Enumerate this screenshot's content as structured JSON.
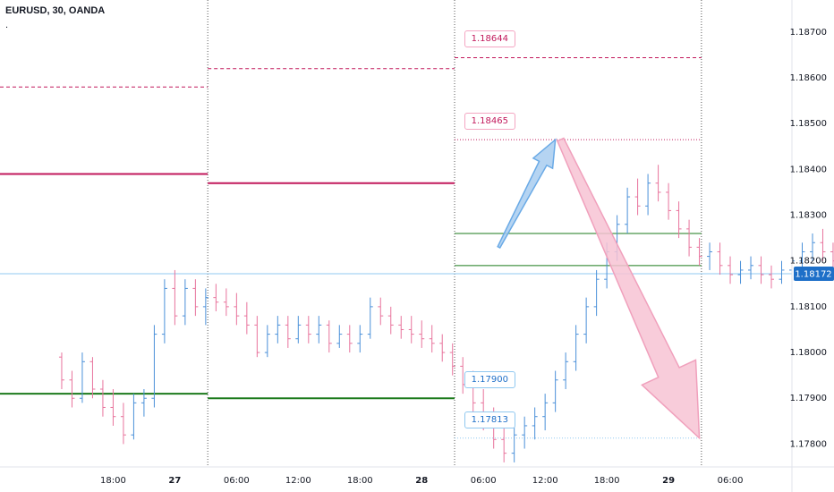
{
  "title": "EURUSD, 30, OANDA",
  "subtitle": ".",
  "colors": {
    "up": "#4a90d9",
    "down": "#e8739c",
    "support": "#1b7a1b",
    "resistance": "#c2185b",
    "grid_sep": "#555555",
    "current": "#90c8f0",
    "arrow_up_fill": "#a8cdf0",
    "arrow_down_fill": "#f7c3d3"
  },
  "chart_data": {
    "type": "candlestick",
    "y_ticks": [
      1.187,
      1.186,
      1.185,
      1.184,
      1.183,
      1.182,
      1.181,
      1.18,
      1.179,
      1.178
    ],
    "y_tick_labels": [
      "1.18700",
      "1.18600",
      "1.18500",
      "1.18400",
      "1.18300",
      "1.18200",
      "1.18100",
      "1.18000",
      "1.17900",
      "1.17800"
    ],
    "ylim": [
      1.1775,
      1.1877
    ],
    "x_ticks": [
      {
        "t": 5,
        "label": "18:00",
        "bold": false
      },
      {
        "t": 11,
        "label": "27",
        "bold": true
      },
      {
        "t": 17,
        "label": "06:00",
        "bold": false
      },
      {
        "t": 23,
        "label": "12:00",
        "bold": false
      },
      {
        "t": 29,
        "label": "18:00",
        "bold": false
      },
      {
        "t": 35,
        "label": "28",
        "bold": true
      },
      {
        "t": 41,
        "label": "06:00",
        "bold": false
      },
      {
        "t": 47,
        "label": "12:00",
        "bold": false
      },
      {
        "t": 53,
        "label": "18:00",
        "bold": false
      },
      {
        "t": 59,
        "label": "29",
        "bold": true
      },
      {
        "t": 65,
        "label": "06:00",
        "bold": false
      }
    ],
    "xlim": [
      -6,
      71
    ],
    "day_separators": [
      14.2,
      38.2,
      62.2
    ],
    "current_price": 1.18172,
    "current_price_label": "1.18172",
    "candles": [
      [
        1.1799,
        1.18,
        1.1792,
        1.1794
      ],
      [
        1.1794,
        1.1796,
        1.1788,
        1.179
      ],
      [
        1.179,
        1.18,
        1.1789,
        1.1798
      ],
      [
        1.1798,
        1.1799,
        1.179,
        1.1792
      ],
      [
        1.1792,
        1.1794,
        1.1786,
        1.1788
      ],
      [
        1.1788,
        1.1792,
        1.1784,
        1.1786
      ],
      [
        1.1786,
        1.1789,
        1.178,
        1.1782
      ],
      [
        1.1782,
        1.1791,
        1.1781,
        1.1789
      ],
      [
        1.1789,
        1.1792,
        1.1786,
        1.179
      ],
      [
        1.179,
        1.1806,
        1.1788,
        1.1804
      ],
      [
        1.1804,
        1.1816,
        1.1802,
        1.1814
      ],
      [
        1.1814,
        1.1818,
        1.1806,
        1.1808
      ],
      [
        1.1808,
        1.1816,
        1.1806,
        1.1814
      ],
      [
        1.1814,
        1.1816,
        1.1808,
        1.181
      ],
      [
        1.181,
        1.1814,
        1.1806,
        1.1812
      ],
      [
        1.1812,
        1.1815,
        1.1809,
        1.1811
      ],
      [
        1.1811,
        1.1814,
        1.1808,
        1.181
      ],
      [
        1.181,
        1.1813,
        1.1806,
        1.1808
      ],
      [
        1.1808,
        1.1811,
        1.1804,
        1.1806
      ],
      [
        1.1806,
        1.1808,
        1.1799,
        1.18
      ],
      [
        1.18,
        1.1806,
        1.1799,
        1.1804
      ],
      [
        1.1804,
        1.1808,
        1.1802,
        1.1806
      ],
      [
        1.1806,
        1.1808,
        1.1801,
        1.1803
      ],
      [
        1.1803,
        1.1808,
        1.1802,
        1.1806
      ],
      [
        1.1806,
        1.1808,
        1.1802,
        1.1804
      ],
      [
        1.1804,
        1.1808,
        1.1802,
        1.1806
      ],
      [
        1.1806,
        1.1807,
        1.18,
        1.1802
      ],
      [
        1.1802,
        1.1806,
        1.1801,
        1.1804
      ],
      [
        1.1804,
        1.1806,
        1.18,
        1.1802
      ],
      [
        1.1802,
        1.1806,
        1.18,
        1.1804
      ],
      [
        1.1804,
        1.1812,
        1.1803,
        1.181
      ],
      [
        1.181,
        1.1812,
        1.1806,
        1.1808
      ],
      [
        1.1808,
        1.181,
        1.1804,
        1.1806
      ],
      [
        1.1806,
        1.1808,
        1.1803,
        1.1805
      ],
      [
        1.1805,
        1.1808,
        1.1802,
        1.1804
      ],
      [
        1.1804,
        1.1807,
        1.1801,
        1.1803
      ],
      [
        1.1803,
        1.1806,
        1.18,
        1.1802
      ],
      [
        1.1802,
        1.1804,
        1.1798,
        1.18
      ],
      [
        1.18,
        1.1802,
        1.1795,
        1.1797
      ],
      [
        1.1797,
        1.1799,
        1.1791,
        1.1793
      ],
      [
        1.1793,
        1.1796,
        1.1787,
        1.1789
      ],
      [
        1.1789,
        1.1792,
        1.1783,
        1.1785
      ],
      [
        1.1785,
        1.1788,
        1.1779,
        1.1781
      ],
      [
        1.1781,
        1.1784,
        1.1776,
        1.1778
      ],
      [
        1.1778,
        1.1784,
        1.1776,
        1.1782
      ],
      [
        1.1782,
        1.1786,
        1.1779,
        1.1784
      ],
      [
        1.1784,
        1.1788,
        1.1781,
        1.1786
      ],
      [
        1.1786,
        1.1791,
        1.1783,
        1.1789
      ],
      [
        1.1789,
        1.1796,
        1.1787,
        1.1794
      ],
      [
        1.1794,
        1.18,
        1.1792,
        1.1798
      ],
      [
        1.1798,
        1.1806,
        1.1796,
        1.1804
      ],
      [
        1.1804,
        1.1812,
        1.1802,
        1.181
      ],
      [
        1.181,
        1.1818,
        1.1808,
        1.1816
      ],
      [
        1.1816,
        1.1824,
        1.1814,
        1.1822
      ],
      [
        1.1822,
        1.183,
        1.182,
        1.1828
      ],
      [
        1.1828,
        1.1836,
        1.1826,
        1.1834
      ],
      [
        1.1834,
        1.1838,
        1.183,
        1.1832
      ],
      [
        1.1832,
        1.1839,
        1.183,
        1.1837
      ],
      [
        1.1837,
        1.1841,
        1.1833,
        1.1835
      ],
      [
        1.1835,
        1.1837,
        1.1829,
        1.1831
      ],
      [
        1.1831,
        1.1833,
        1.1825,
        1.1827
      ],
      [
        1.1827,
        1.1829,
        1.1821,
        1.1823
      ],
      [
        1.1823,
        1.1825,
        1.1819,
        1.1821
      ],
      [
        1.1821,
        1.1824,
        1.1818,
        1.1822
      ],
      [
        1.1822,
        1.1824,
        1.1817,
        1.1819
      ],
      [
        1.1819,
        1.1821,
        1.1815,
        1.1817
      ],
      [
        1.1817,
        1.182,
        1.1815,
        1.1818
      ],
      [
        1.1818,
        1.1821,
        1.1816,
        1.1819
      ],
      [
        1.1819,
        1.1821,
        1.1815,
        1.1817
      ],
      [
        1.1817,
        1.1819,
        1.1814,
        1.1816
      ],
      [
        1.1816,
        1.182,
        1.1815,
        1.1818
      ],
      [
        1.1818,
        1.1822,
        1.1817,
        1.182
      ],
      [
        1.182,
        1.1824,
        1.1818,
        1.1822
      ],
      [
        1.1822,
        1.1826,
        1.182,
        1.1824
      ],
      [
        1.1824,
        1.1827,
        1.182,
        1.1822
      ],
      [
        1.1822,
        1.1824,
        1.1818,
        1.182
      ],
      [
        1.182,
        1.1822,
        1.1816,
        1.1818
      ],
      [
        1.1818,
        1.182,
        1.1815,
        1.1817
      ]
    ],
    "horizontal_lines": [
      {
        "name": "resistance-line-day1",
        "price": 1.1839,
        "x1": -6,
        "x2": 14.2,
        "color": "resistance",
        "style": "solid"
      },
      {
        "name": "resistance-line-day2",
        "price": 1.1837,
        "x1": 14.2,
        "x2": 38.2,
        "color": "resistance",
        "style": "solid"
      },
      {
        "name": "pivot-dashed-day1",
        "price": 1.1858,
        "x1": -6,
        "x2": 14.2,
        "color": "resistance",
        "style": "dashed"
      },
      {
        "name": "pivot-dashed-day2",
        "price": 1.1862,
        "x1": 14.2,
        "x2": 38.2,
        "color": "resistance",
        "style": "dashed"
      },
      {
        "name": "pivot-dashed-day3",
        "price": 1.18644,
        "x1": 38.2,
        "x2": 62.2,
        "color": "resistance",
        "style": "dashed"
      },
      {
        "name": "target-dotted-high",
        "price": 1.18465,
        "x1": 38.2,
        "x2": 62.2,
        "color": "resistance",
        "style": "dotted"
      },
      {
        "name": "support-line-day1",
        "price": 1.1791,
        "x1": -6,
        "x2": 14.2,
        "color": "support",
        "style": "solid"
      },
      {
        "name": "support-line-day2",
        "price": 1.179,
        "x1": 14.2,
        "x2": 38.2,
        "color": "support",
        "style": "solid"
      },
      {
        "name": "range-top-line",
        "price": 1.1826,
        "x1": 38.2,
        "x2": 62.2,
        "color": "support",
        "style": "thin"
      },
      {
        "name": "range-bottom-line",
        "price": 1.1819,
        "x1": 38.2,
        "x2": 62.2,
        "color": "support",
        "style": "thin"
      },
      {
        "name": "target-dotted-low",
        "price": 1.17813,
        "x1": 38.2,
        "x2": 62.2,
        "color": "current",
        "style": "dotted"
      }
    ],
    "price_labels": [
      {
        "text": "1.18644",
        "price": 1.18644,
        "t": 38.6,
        "color": "resistance"
      },
      {
        "text": "1.18465",
        "price": 1.18465,
        "t": 38.6,
        "color": "resistance"
      },
      {
        "text": "1.17900",
        "price": 1.179,
        "t": 38.6,
        "color": "current"
      },
      {
        "text": "1.17813",
        "price": 1.17813,
        "t": 38.6,
        "color": "current"
      }
    ],
    "arrows": [
      {
        "name": "bullish-arrow",
        "from": [
          42.5,
          1.1823
        ],
        "to": [
          48.0,
          1.18465
        ],
        "color": "arrow_up_fill"
      },
      {
        "name": "bearish-arrow",
        "from": [
          48.5,
          1.18465
        ],
        "to": [
          62.0,
          1.17813
        ],
        "color": "arrow_down_fill"
      }
    ]
  }
}
